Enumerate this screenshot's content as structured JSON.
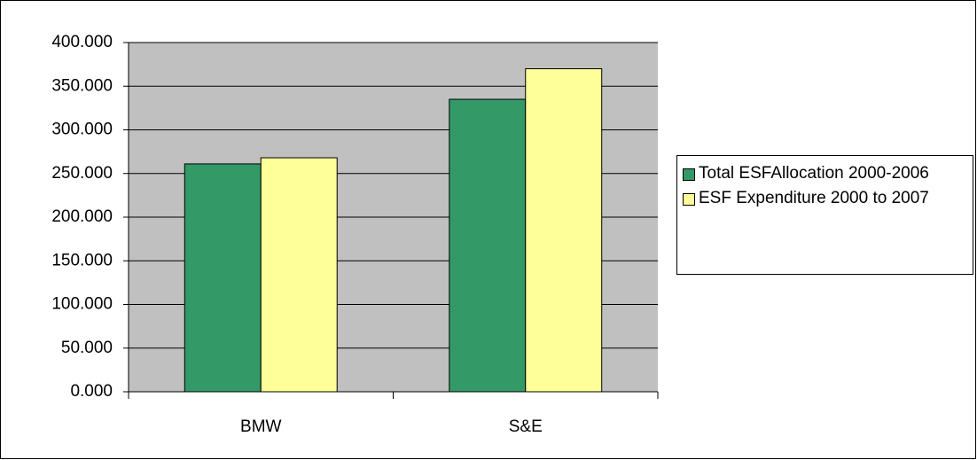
{
  "chart_data": {
    "type": "bar",
    "categories": [
      "BMW",
      "S&E"
    ],
    "series": [
      {
        "name": "Total ESFAllocation 2000-2006",
        "color": "#339966",
        "values": [
          261,
          335
        ]
      },
      {
        "name": "ESF Expenditure 2000 to 2007",
        "color": "#ffff99",
        "values": [
          268,
          370
        ]
      }
    ],
    "ylim": [
      0,
      400
    ],
    "yticks": [
      {
        "value": 0,
        "label": "0.000"
      },
      {
        "value": 50,
        "label": "50.000"
      },
      {
        "value": 100,
        "label": "100.000"
      },
      {
        "value": 150,
        "label": "150.000"
      },
      {
        "value": 200,
        "label": "200.000"
      },
      {
        "value": 250,
        "label": "250.000"
      },
      {
        "value": 300,
        "label": "300.000"
      },
      {
        "value": 350,
        "label": "350.000"
      },
      {
        "value": 400,
        "label": "400.000"
      }
    ],
    "grid": true,
    "plot_background": "#c0c0c0",
    "legend": "right"
  }
}
